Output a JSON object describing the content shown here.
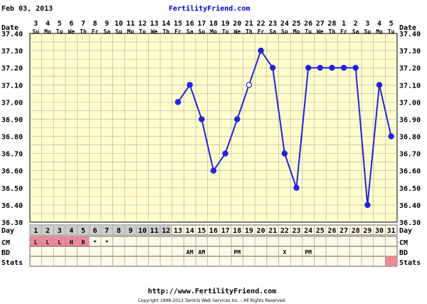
{
  "header": {
    "date_title": "Feb 03, 2013",
    "site": "FertilityFriend.com"
  },
  "row_labels": {
    "date": "Date",
    "day": "Day",
    "cm": "CM",
    "bd": "BD",
    "stats": "Stats"
  },
  "footer": {
    "url": "http://www.FertilityFriend.com",
    "copyright": "Copyright 1998-2013 Tamtris Web Services Inc. - All Rights Reserved."
  },
  "colors": {
    "plot_bg": "#ffffcc",
    "grid": "#aaaaaa",
    "line": "#2222dd",
    "period": "#ee8899",
    "row_gray": "#cccccc",
    "row_bg": "#fffbe8"
  },
  "chart_data": {
    "type": "line",
    "ylim": [
      36.3,
      37.4
    ],
    "yticks": [
      "37.40",
      "37.30",
      "37.20",
      "37.10",
      "37.00",
      "36.90",
      "36.80",
      "36.70",
      "36.60",
      "36.50",
      "36.40",
      "36.30"
    ],
    "dates": [
      "3",
      "4",
      "5",
      "6",
      "7",
      "8",
      "9",
      "10",
      "11",
      "12",
      "13",
      "14",
      "15",
      "16",
      "17",
      "18",
      "19",
      "20",
      "21",
      "22",
      "23",
      "24",
      "25",
      "26",
      "27",
      "28",
      "1",
      "2",
      "3",
      "4",
      "5"
    ],
    "weekdays": [
      "Su",
      "Mo",
      "Tu",
      "We",
      "Th",
      "Fr",
      "Sa",
      "Su",
      "Mo",
      "Tu",
      "We",
      "Th",
      "Fr",
      "Sa",
      "Su",
      "Mo",
      "Tu",
      "We",
      "Th",
      "Fr",
      "Sa",
      "Su",
      "Mo",
      "Tu",
      "We",
      "Th",
      "Fr",
      "Sa",
      "Su",
      "Mo",
      "Tu"
    ],
    "cycle_days": [
      "1",
      "2",
      "3",
      "4",
      "5",
      "6",
      "7",
      "8",
      "9",
      "10",
      "11",
      "12",
      "13",
      "14",
      "15",
      "16",
      "17",
      "18",
      "19",
      "20",
      "21",
      "22",
      "23",
      "24",
      "25",
      "26",
      "27",
      "28",
      "29",
      "30",
      "31"
    ],
    "temps": [
      null,
      null,
      null,
      null,
      null,
      null,
      null,
      null,
      null,
      null,
      null,
      null,
      37.0,
      37.1,
      36.9,
      36.6,
      36.7,
      36.9,
      37.1,
      37.3,
      37.2,
      36.7,
      36.5,
      37.2,
      37.2,
      37.2,
      37.2,
      37.2,
      36.4,
      37.1,
      36.8
    ],
    "open_point_days": [
      19
    ],
    "cm": [
      "L",
      "L",
      "L",
      "H",
      "H",
      "*",
      "*",
      "",
      "",
      "",
      "",
      "",
      "",
      "",
      "",
      "",
      "",
      "",
      "",
      "",
      "",
      "",
      "",
      "",
      "",
      "",
      "",
      "",
      "",
      "",
      ""
    ],
    "cm_period_days": [
      1,
      2,
      3,
      4,
      5
    ],
    "bd": [
      "",
      "",
      "",
      "",
      "",
      "",
      "",
      "",
      "",
      "",
      "",
      "",
      "",
      "AM",
      "AM",
      "",
      "",
      "PM",
      "",
      "",
      "",
      "X",
      "",
      "PM",
      "",
      "",
      "",
      "",
      "",
      "",
      ""
    ],
    "stats_marked_days": [
      31
    ],
    "gray_day_cells": [
      1,
      2,
      3,
      4,
      5,
      6,
      7,
      8,
      9,
      10,
      11,
      12
    ]
  }
}
